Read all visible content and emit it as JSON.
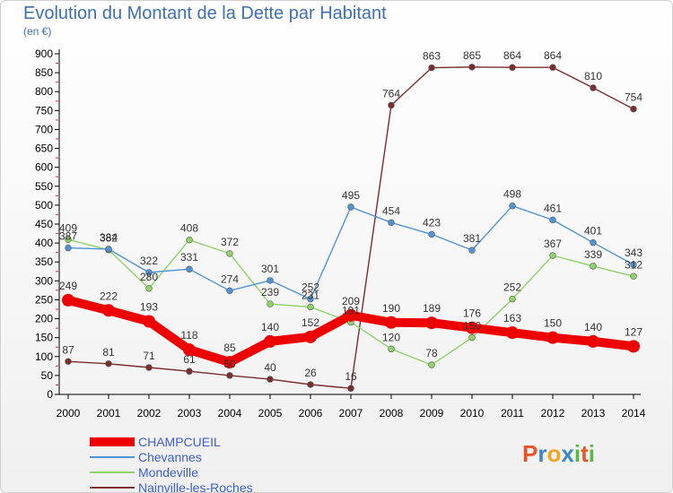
{
  "header": {
    "title": "Evolution du Montant de la Dette par Habitant",
    "unit": "(en €)"
  },
  "brand": {
    "letters": [
      "P",
      "r",
      "o",
      "x",
      "i",
      "t",
      "i"
    ],
    "colors": [
      "#e8552a",
      "#3a86c8",
      "#f3a51d",
      "#3a86c8",
      "#56b847",
      "#e8552a",
      "#56b847"
    ]
  },
  "chart_data": {
    "type": "line",
    "x": [
      2000,
      2001,
      2002,
      2003,
      2004,
      2005,
      2006,
      2007,
      2008,
      2009,
      2010,
      2011,
      2012,
      2013,
      2014
    ],
    "ylim": [
      0,
      900
    ],
    "yticks": [
      0,
      50,
      100,
      150,
      200,
      250,
      300,
      350,
      400,
      450,
      500,
      550,
      600,
      650,
      700,
      750,
      800,
      850,
      900
    ],
    "grid": false,
    "legend": "bottom-left",
    "series": [
      {
        "name": "CHAMPCUEIL",
        "color": "#ee0000",
        "highlight": true,
        "values": [
          249,
          222,
          193,
          118,
          85,
          140,
          152,
          209,
          190,
          189,
          176,
          163,
          150,
          140,
          127
        ]
      },
      {
        "name": "Chevannes",
        "color": "#4f94d6",
        "values": [
          387,
          384,
          322,
          331,
          274,
          301,
          252,
          495,
          454,
          423,
          381,
          498,
          461,
          401,
          343
        ]
      },
      {
        "name": "Mondeville",
        "color": "#8fd46a",
        "values": [
          409,
          382,
          280,
          408,
          372,
          239,
          231,
          191,
          120,
          78,
          150,
          252,
          367,
          339,
          312
        ]
      },
      {
        "name": "Nainville-les-Roches",
        "color": "#7a2e2e",
        "values": [
          87,
          81,
          71,
          61,
          50,
          40,
          26,
          16,
          764,
          863,
          865,
          864,
          864,
          810,
          754
        ]
      }
    ]
  }
}
